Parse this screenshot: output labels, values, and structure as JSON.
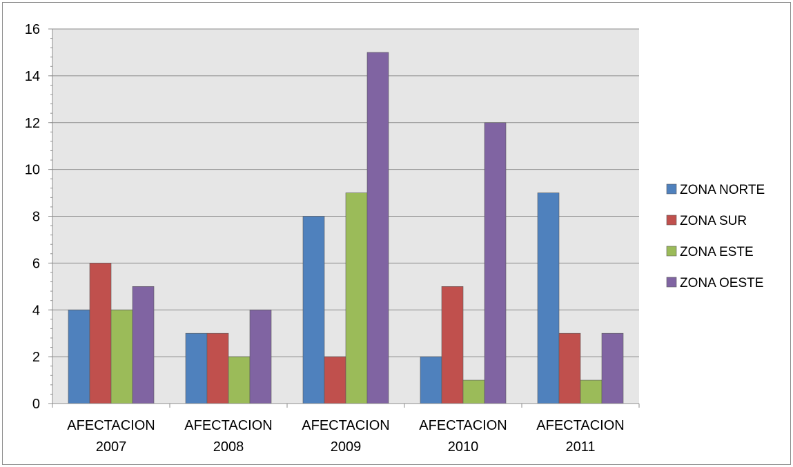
{
  "chart_data": {
    "type": "bar",
    "categories": [
      "AFECTACION 2007",
      "AFECTACION 2008",
      "AFECTACION 2009",
      "AFECTACION 2010",
      "AFECTACION 2011"
    ],
    "series": [
      {
        "name": "ZONA NORTE",
        "color": "#4f81bd",
        "values": [
          4,
          3,
          8,
          2,
          9
        ]
      },
      {
        "name": "ZONA SUR",
        "color": "#c0504d",
        "values": [
          6,
          3,
          2,
          5,
          3
        ]
      },
      {
        "name": "ZONA ESTE",
        "color": "#9bbb59",
        "values": [
          4,
          2,
          9,
          1,
          1
        ]
      },
      {
        "name": "ZONA OESTE",
        "color": "#8064a2",
        "values": [
          5,
          4,
          15,
          12,
          3
        ]
      }
    ],
    "ylim": [
      0,
      16
    ],
    "yticks": [
      0,
      2,
      4,
      6,
      8,
      10,
      12,
      14,
      16
    ],
    "grid": true,
    "legend": "right",
    "plot_background": "#e6e6e6"
  }
}
